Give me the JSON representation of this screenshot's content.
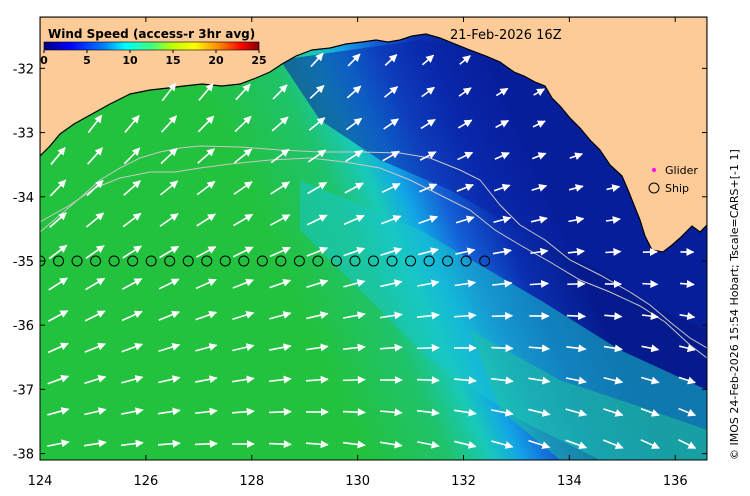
{
  "title": {
    "product": "Wind Speed (access-r 3hr avg)",
    "date": "21-Feb-2026 16Z"
  },
  "colorbar": {
    "ticks": [
      "0",
      "5",
      "10",
      "15",
      "20",
      "25"
    ],
    "range": [
      0,
      25
    ],
    "colors": [
      "#00007f",
      "#0000ff",
      "#0080ff",
      "#00ffff",
      "#00ff80",
      "#80ff00",
      "#ffff00",
      "#ff8000",
      "#ff0000",
      "#800000"
    ]
  },
  "axes": {
    "lon_ticks": [
      "124",
      "126",
      "128",
      "130",
      "132",
      "134",
      "136"
    ],
    "lat_ticks": [
      "-32",
      "-33",
      "-34",
      "-35",
      "-36",
      "-37",
      "-38"
    ],
    "lon_range": [
      124,
      136.6
    ],
    "lat_range": [
      -38.1,
      -31.2
    ]
  },
  "legend": {
    "glider_label": "Glider",
    "ship_label": "Ship",
    "glider_color": "#ff00ff"
  },
  "credit": "© IMOS 24-Feb-2026 15:54 Hobart; Tscale=CARS+[-1 1]",
  "colors": {
    "land": "#fdcb98",
    "deep_blue": "#0b1fa3",
    "mid_blue": "#1560e0",
    "cyan": "#17c8d8",
    "teal_green": "#18c98a",
    "green": "#20c040",
    "arrow": "#ffffff"
  },
  "ship_track": {
    "lat": -35,
    "lon": [
      124.0,
      124.35,
      124.7,
      125.05,
      125.4,
      125.75,
      126.1,
      126.45,
      126.8,
      127.15,
      127.5,
      127.85,
      128.2,
      128.55,
      128.9,
      129.25,
      129.6,
      129.95,
      130.3,
      130.65,
      131.0,
      131.35,
      131.7,
      132.05,
      132.4
    ]
  }
}
